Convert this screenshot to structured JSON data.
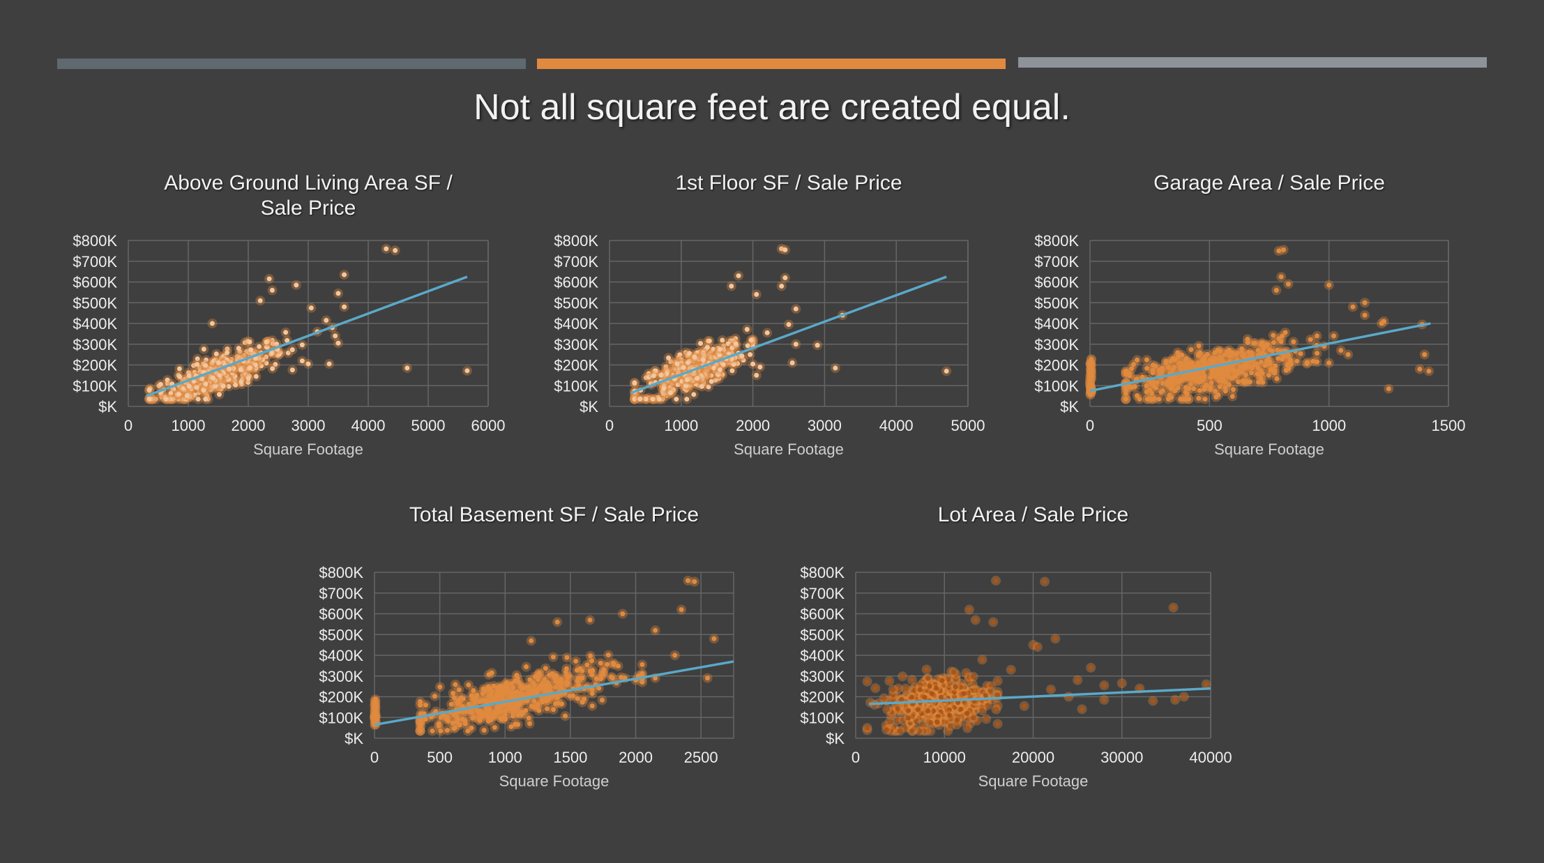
{
  "slide_title": "Not all square feet are created equal.",
  "accent_colors": {
    "bar1": "#5e6a70",
    "bar2": "#e08a3f",
    "bar3": "#8e9299",
    "trendline": "#5aa9c9",
    "points": "#e08a3f",
    "points_light": "#f2c7a0",
    "points_dark": "#a85518"
  },
  "chart_data": [
    {
      "type": "scatter",
      "title": [
        "Above Ground Living Area SF /",
        "Sale Price"
      ],
      "xlabel": "Square Footage",
      "ylabel": "",
      "xlim": [
        0,
        6000
      ],
      "xticks": [
        "0",
        "1000",
        "2000",
        "3000",
        "4000",
        "5000",
        "6000"
      ],
      "ylim": [
        0,
        800000
      ],
      "yticks": [
        "$K",
        "$100K",
        "$200K",
        "$300K",
        "$400K",
        "$500K",
        "$600K",
        "$700K",
        "$800K"
      ],
      "grid": true,
      "trendline": {
        "x": [
          300,
          5650
        ],
        "y": [
          50000,
          625000
        ]
      },
      "cloud": {
        "x_center": 1500,
        "x_spread": 550,
        "slope": 110,
        "intercept": -10000,
        "noise": 45000,
        "n": 380,
        "x_min": 350,
        "x_max": 2900
      },
      "points": [
        {
          "x": 4300,
          "y": 760000
        },
        {
          "x": 4450,
          "y": 752000
        },
        {
          "x": 5650,
          "y": 172000
        },
        {
          "x": 4650,
          "y": 185000
        },
        {
          "x": 3600,
          "y": 635000
        },
        {
          "x": 3500,
          "y": 545000
        },
        {
          "x": 3600,
          "y": 480000
        },
        {
          "x": 3300,
          "y": 415000
        },
        {
          "x": 3400,
          "y": 380000
        },
        {
          "x": 3450,
          "y": 340000
        },
        {
          "x": 3500,
          "y": 305000
        },
        {
          "x": 3150,
          "y": 360000
        },
        {
          "x": 3000,
          "y": 205000
        },
        {
          "x": 3350,
          "y": 205000
        },
        {
          "x": 3050,
          "y": 475000
        },
        {
          "x": 2800,
          "y": 585000
        },
        {
          "x": 2350,
          "y": 615000
        },
        {
          "x": 2400,
          "y": 560000
        },
        {
          "x": 2200,
          "y": 510000
        },
        {
          "x": 1400,
          "y": 400000
        }
      ],
      "point_color": "#f2c7a0"
    },
    {
      "type": "scatter",
      "title": [
        "1st Floor SF / Sale Price"
      ],
      "xlabel": "Square Footage",
      "ylabel": "",
      "xlim": [
        0,
        5000
      ],
      "xticks": [
        "0",
        "1000",
        "2000",
        "3000",
        "4000",
        "5000"
      ],
      "ylim": [
        0,
        800000
      ],
      "yticks": [
        "$K",
        "$100K",
        "$200K",
        "$300K",
        "$400K",
        "$500K",
        "$600K",
        "$700K",
        "$800K"
      ],
      "grid": true,
      "trendline": {
        "x": [
          300,
          4700
        ],
        "y": [
          65000,
          625000
        ]
      },
      "cloud": {
        "x_center": 1150,
        "x_spread": 380,
        "slope": 135,
        "intercept": 15000,
        "noise": 48000,
        "n": 380,
        "x_min": 350,
        "x_max": 2000
      },
      "points": [
        {
          "x": 2400,
          "y": 760000
        },
        {
          "x": 2450,
          "y": 755000
        },
        {
          "x": 4700,
          "y": 170000
        },
        {
          "x": 3150,
          "y": 185000
        },
        {
          "x": 3250,
          "y": 440000
        },
        {
          "x": 2600,
          "y": 470000
        },
        {
          "x": 2500,
          "y": 395000
        },
        {
          "x": 2400,
          "y": 580000
        },
        {
          "x": 2450,
          "y": 620000
        },
        {
          "x": 2600,
          "y": 300000
        },
        {
          "x": 2550,
          "y": 210000
        },
        {
          "x": 2900,
          "y": 295000
        },
        {
          "x": 1800,
          "y": 630000
        },
        {
          "x": 1700,
          "y": 580000
        },
        {
          "x": 2050,
          "y": 540000
        },
        {
          "x": 2200,
          "y": 355000
        },
        {
          "x": 2100,
          "y": 190000
        },
        {
          "x": 2050,
          "y": 150000
        }
      ],
      "point_color": "#f2c7a0"
    },
    {
      "type": "scatter",
      "title": [
        "Garage Area / Sale Price"
      ],
      "xlabel": "Square Footage",
      "ylabel": "",
      "xlim": [
        0,
        1500
      ],
      "xticks": [
        "0",
        "500",
        "1000",
        "1500"
      ],
      "ylim": [
        0,
        800000
      ],
      "yticks": [
        "$K",
        "$100K",
        "$200K",
        "$300K",
        "$400K",
        "$500K",
        "$600K",
        "$700K",
        "$800K"
      ],
      "grid": true,
      "trendline": {
        "x": [
          0,
          1425
        ],
        "y": [
          75000,
          400000
        ]
      },
      "cloud": {
        "x_center": 500,
        "x_spread": 190,
        "slope": 230,
        "intercept": 55000,
        "noise": 55000,
        "n": 420,
        "x_min": 150,
        "x_max": 950
      },
      "zero_cluster": {
        "x": 0,
        "y_min": 55000,
        "y_max": 230000,
        "n": 40
      },
      "points": [
        {
          "x": 810,
          "y": 755000
        },
        {
          "x": 790,
          "y": 750000
        },
        {
          "x": 800,
          "y": 625000
        },
        {
          "x": 830,
          "y": 590000
        },
        {
          "x": 780,
          "y": 560000
        },
        {
          "x": 1000,
          "y": 585000
        },
        {
          "x": 1100,
          "y": 480000
        },
        {
          "x": 1150,
          "y": 440000
        },
        {
          "x": 1220,
          "y": 400000
        },
        {
          "x": 1390,
          "y": 395000
        },
        {
          "x": 1150,
          "y": 500000
        },
        {
          "x": 1020,
          "y": 340000
        },
        {
          "x": 1050,
          "y": 270000
        },
        {
          "x": 1080,
          "y": 250000
        },
        {
          "x": 1230,
          "y": 410000
        },
        {
          "x": 1250,
          "y": 85000
        },
        {
          "x": 1380,
          "y": 180000
        },
        {
          "x": 1418,
          "y": 170000
        },
        {
          "x": 1400,
          "y": 250000
        },
        {
          "x": 980,
          "y": 290000
        },
        {
          "x": 1000,
          "y": 210000
        }
      ],
      "point_color": "#e08a3f"
    },
    {
      "type": "scatter",
      "title": [
        "Total Basement SF / Sale Price"
      ],
      "xlabel": "Square Footage",
      "ylabel": "",
      "xlim": [
        0,
        2750
      ],
      "xticks": [
        "0",
        "500",
        "1000",
        "1500",
        "2000",
        "2500"
      ],
      "ylim": [
        0,
        800000
      ],
      "yticks": [
        "$K",
        "$100K",
        "$200K",
        "$300K",
        "$400K",
        "$500K",
        "$600K",
        "$700K",
        "$800K"
      ],
      "grid": true,
      "trendline": {
        "x": [
          0,
          2750
        ],
        "y": [
          65000,
          370000
        ]
      },
      "cloud": {
        "x_center": 1050,
        "x_spread": 370,
        "slope": 140,
        "intercept": 40000,
        "noise": 55000,
        "n": 420,
        "x_min": 350,
        "x_max": 2050
      },
      "zero_cluster": {
        "x": 0,
        "y_min": 60000,
        "y_max": 190000,
        "n": 30
      },
      "points": [
        {
          "x": 2400,
          "y": 760000
        },
        {
          "x": 2450,
          "y": 755000
        },
        {
          "x": 2350,
          "y": 620000
        },
        {
          "x": 1650,
          "y": 570000
        },
        {
          "x": 1900,
          "y": 600000
        },
        {
          "x": 2150,
          "y": 520000
        },
        {
          "x": 2300,
          "y": 400000
        },
        {
          "x": 2600,
          "y": 480000
        },
        {
          "x": 2550,
          "y": 290000
        },
        {
          "x": 2000,
          "y": 280000
        },
        {
          "x": 2150,
          "y": 290000
        },
        {
          "x": 2050,
          "y": 355000
        },
        {
          "x": 1400,
          "y": 560000
        },
        {
          "x": 1200,
          "y": 470000
        }
      ],
      "point_color": "#e08a3f"
    },
    {
      "type": "scatter",
      "title": [
        "Lot Area / Sale Price"
      ],
      "xlabel": "Square Footage",
      "ylabel": "",
      "xlim": [
        0,
        40000
      ],
      "xticks": [
        "0",
        "10000",
        "20000",
        "30000",
        "40000"
      ],
      "ylim": [
        0,
        800000
      ],
      "yticks": [
        "$K",
        "$100K",
        "$200K",
        "$300K",
        "$400K",
        "$500K",
        "$600K",
        "$700K",
        "$800K"
      ],
      "grid": true,
      "trendline": {
        "x": [
          1500,
          40000
        ],
        "y": [
          165000,
          240000
        ]
      },
      "cloud": {
        "x_center": 9500,
        "x_spread": 3000,
        "slope": 5,
        "intercept": 130000,
        "noise": 65000,
        "n": 420,
        "x_min": 1300,
        "x_max": 16000
      },
      "points": [
        {
          "x": 15800,
          "y": 760000
        },
        {
          "x": 21300,
          "y": 755000
        },
        {
          "x": 35800,
          "y": 630000
        },
        {
          "x": 12800,
          "y": 620000
        },
        {
          "x": 13500,
          "y": 570000
        },
        {
          "x": 15500,
          "y": 560000
        },
        {
          "x": 20000,
          "y": 450000
        },
        {
          "x": 20500,
          "y": 440000
        },
        {
          "x": 22500,
          "y": 480000
        },
        {
          "x": 17500,
          "y": 330000
        },
        {
          "x": 25000,
          "y": 280000
        },
        {
          "x": 26500,
          "y": 340000
        },
        {
          "x": 28000,
          "y": 255000
        },
        {
          "x": 30000,
          "y": 265000
        },
        {
          "x": 32000,
          "y": 240000
        },
        {
          "x": 33500,
          "y": 180000
        },
        {
          "x": 36000,
          "y": 185000
        },
        {
          "x": 37000,
          "y": 200000
        },
        {
          "x": 39500,
          "y": 260000
        },
        {
          "x": 24000,
          "y": 200000
        },
        {
          "x": 25500,
          "y": 140000
        },
        {
          "x": 19000,
          "y": 155000
        },
        {
          "x": 22000,
          "y": 235000
        },
        {
          "x": 28000,
          "y": 185000
        }
      ],
      "point_color": "#a85518"
    }
  ]
}
